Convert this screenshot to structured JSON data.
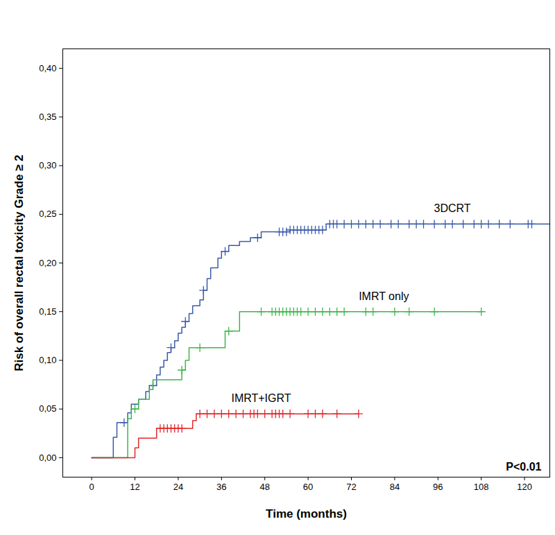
{
  "chart_data": {
    "type": "line",
    "xlabel": "Time (months)",
    "ylabel": "Risk of overall rectal toxicity Grade ≥ 2",
    "annotation": "P<0.01",
    "xlim": [
      -8,
      127
    ],
    "ylim": [
      -0.02,
      0.42
    ],
    "xticks": [
      0,
      12,
      24,
      36,
      48,
      60,
      72,
      84,
      96,
      108,
      120
    ],
    "yticks": [
      {
        "value": 0,
        "label": "0,00"
      },
      {
        "value": 0.05,
        "label": "0,05"
      },
      {
        "value": 0.1,
        "label": "0,10"
      },
      {
        "value": 0.15,
        "label": "0,15"
      },
      {
        "value": 0.2,
        "label": "0,20"
      },
      {
        "value": 0.25,
        "label": "0,25"
      },
      {
        "value": 0.3,
        "label": "0,30"
      },
      {
        "value": 0.35,
        "label": "0,35"
      },
      {
        "value": 0.4,
        "label": "0,40"
      }
    ],
    "grid": false,
    "series": [
      {
        "name": "3DCRT",
        "color": "#3a5ba9",
        "line_style": "step",
        "marker": "plus",
        "x": [
          0,
          6,
          7,
          10,
          11,
          13,
          15,
          16,
          18,
          19,
          20,
          21,
          22,
          23,
          24,
          25,
          26,
          27,
          28,
          30,
          31,
          32,
          33,
          35,
          36,
          38,
          41,
          44,
          47,
          55,
          65,
          127
        ],
        "values": [
          0,
          0.021,
          0.036,
          0.046,
          0.055,
          0.06,
          0.068,
          0.074,
          0.085,
          0.093,
          0.1,
          0.108,
          0.113,
          0.12,
          0.128,
          0.134,
          0.14,
          0.148,
          0.156,
          0.162,
          0.172,
          0.184,
          0.195,
          0.205,
          0.212,
          0.218,
          0.222,
          0.226,
          0.232,
          0.234,
          0.24,
          0.24
        ],
        "censored": [
          9,
          17,
          22,
          26,
          31,
          37,
          46,
          52,
          53,
          54,
          55,
          56,
          57,
          58,
          59,
          60,
          61,
          62,
          63,
          64,
          66,
          67,
          68,
          70,
          72,
          74,
          76,
          78,
          80,
          83,
          85,
          88,
          90,
          92,
          95,
          98,
          100,
          103,
          106,
          108,
          110,
          113,
          116,
          121,
          122
        ]
      },
      {
        "name": "IMRT only",
        "color": "#3fb54a",
        "line_style": "step",
        "marker": "plus",
        "x": [
          0,
          10,
          11,
          13,
          16,
          17,
          25,
          26,
          27,
          37,
          41,
          108
        ],
        "values": [
          0,
          0.04,
          0.05,
          0.06,
          0.07,
          0.08,
          0.09,
          0.1,
          0.113,
          0.13,
          0.15,
          0.15
        ],
        "censored": [
          12,
          25,
          30,
          38,
          47,
          50,
          51,
          52,
          53,
          54,
          55,
          56,
          57,
          58,
          60,
          62,
          64,
          66,
          68,
          70,
          76,
          78,
          84,
          88,
          95,
          108
        ]
      },
      {
        "name": "IMRT+IGRT",
        "color": "#e3262b",
        "line_style": "step",
        "marker": "plus",
        "x": [
          0,
          12,
          13,
          18,
          28,
          29,
          74
        ],
        "values": [
          0,
          0.01,
          0.02,
          0.03,
          0.038,
          0.045,
          0.045
        ],
        "censored": [
          19,
          20,
          21,
          22,
          23,
          24,
          25,
          30,
          32,
          34,
          36,
          38,
          40,
          42,
          44,
          45,
          46,
          48,
          50,
          51,
          52,
          53,
          55,
          60,
          62,
          64,
          68,
          74
        ]
      }
    ]
  }
}
